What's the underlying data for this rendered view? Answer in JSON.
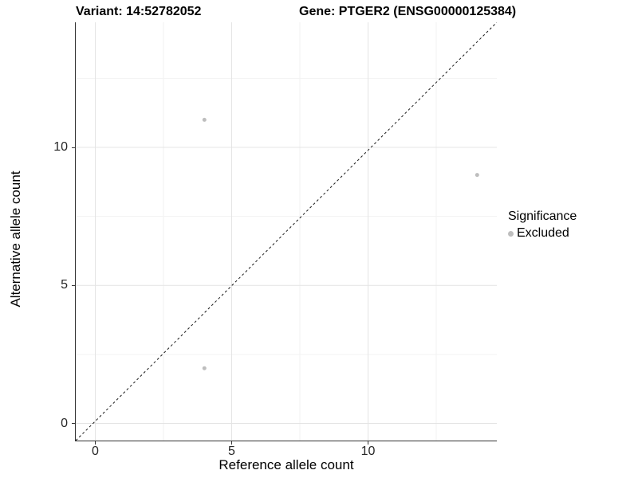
{
  "chart_data": {
    "type": "scatter",
    "title_left": "Variant: 14:52782052",
    "title_right": "Gene: PTGER2 (ENSG00000125384)",
    "xlabel": "Reference allele count",
    "ylabel": "Alternative allele count",
    "xlim": [
      -0.7,
      14.7
    ],
    "ylim": [
      -0.6,
      14.5
    ],
    "xticks": [
      0,
      5,
      10
    ],
    "yticks": [
      0,
      5,
      10
    ],
    "xminor": [
      2.5,
      7.5,
      12.5
    ],
    "yminor": [
      2.5,
      7.5,
      12.5
    ],
    "grid": "major and minor gridlines, white panel",
    "series": [
      {
        "name": "Excluded",
        "color": "#bebebe",
        "points": [
          [
            4,
            2
          ],
          [
            4,
            11
          ],
          [
            14,
            9
          ]
        ]
      }
    ],
    "reference_line": {
      "slope": 1,
      "intercept": 0,
      "style": "dashed",
      "color": "#1a1a1a"
    },
    "legend": {
      "title": "Significance",
      "position": "right",
      "entries": [
        {
          "label": "Excluded",
          "color": "#bebebe"
        }
      ]
    },
    "colors": {
      "grid_major": "#e4e4e4",
      "grid_minor": "#f2f2f2",
      "axis_line": "#333333",
      "tick_label": "#262626",
      "point": "#bebebe"
    }
  }
}
